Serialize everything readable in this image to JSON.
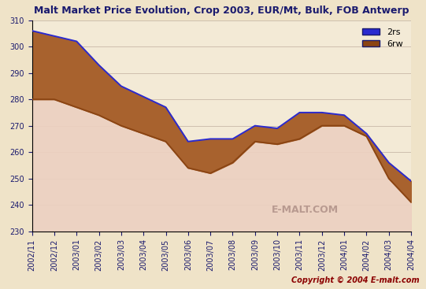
{
  "chart_data": {
    "type": "area",
    "title": "Malt Market Price Evolution, Crop 2003, EUR/Mt, Bulk, FOB Antwerp",
    "categories": [
      "2002/11",
      "2002/12",
      "2003/01",
      "2003/02",
      "2003/03",
      "2003/04",
      "2003/05",
      "2003/06",
      "2003/07",
      "2003/08",
      "2003/09",
      "2003/10",
      "2003/11",
      "2003/12",
      "2004/01",
      "2004/02",
      "2004/03",
      "2004/04"
    ],
    "series": [
      {
        "name": "2rs",
        "color": "#2a2ad0",
        "values": [
          306,
          304,
          302,
          293,
          285,
          281,
          277,
          264,
          265,
          265,
          270,
          269,
          275,
          275,
          274,
          267,
          256,
          249
        ]
      },
      {
        "name": "6rw",
        "color": "#8b4513",
        "values": [
          280,
          280,
          277,
          274,
          270,
          267,
          264,
          254,
          252,
          256,
          264,
          263,
          265,
          270,
          270,
          266,
          250,
          241
        ]
      }
    ],
    "ylim": [
      230,
      310
    ],
    "yticks": [
      230,
      240,
      250,
      260,
      270,
      280,
      290,
      300,
      310
    ],
    "grid": true,
    "legend": "upper right",
    "annotations": [
      "E-MALT.COM",
      "Copyright © 2004 E-malt.com"
    ]
  }
}
